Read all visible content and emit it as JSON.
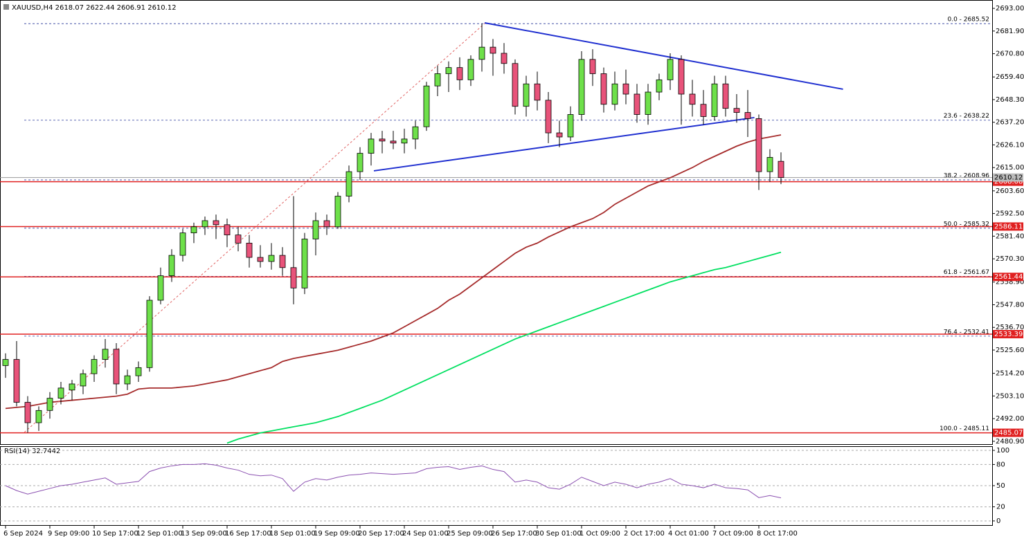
{
  "chart_data": [
    {
      "type": "candlestick",
      "title": "XAUUSD,H4 2618.07 2622.44 2606.91 2610.12",
      "ylim": [
        2479.5,
        2697.1
      ],
      "yticks": [
        {
          "value": 2693,
          "label": "2693.00"
        },
        {
          "value": 2681.9,
          "label": "2681.90"
        },
        {
          "value": 2670.8,
          "label": "2670.80"
        },
        {
          "value": 2659.4,
          "label": "2659.40"
        },
        {
          "value": 2648.3,
          "label": "2648.30"
        },
        {
          "value": 2637.2,
          "label": "2637.20"
        },
        {
          "value": 2626.1,
          "label": "2626.10"
        },
        {
          "value": 2615,
          "label": "2615.00"
        },
        {
          "value": 2603.6,
          "label": "2603.60"
        },
        {
          "value": 2592.5,
          "label": "2592.50"
        },
        {
          "value": 2581.4,
          "label": "2581.40"
        },
        {
          "value": 2570.3,
          "label": "2570.30"
        },
        {
          "value": 2558.9,
          "label": "2558.90"
        },
        {
          "value": 2547.8,
          "label": "2547.80"
        },
        {
          "value": 2536.7,
          "label": "2536.70"
        },
        {
          "value": 2525.6,
          "label": "2525.60"
        },
        {
          "value": 2514.2,
          "label": "2514.20"
        },
        {
          "value": 2503.1,
          "label": "2503.10"
        },
        {
          "value": 2492,
          "label": "2492.00"
        },
        {
          "value": 2480.9,
          "label": "2480.90"
        }
      ],
      "grid": false,
      "up_color": "#6ee04a",
      "down_color": "#e8537a",
      "open": [
        2518,
        2521,
        2500,
        2490,
        2496,
        2502,
        2506,
        2508,
        2514,
        2521,
        2526,
        2509,
        2513,
        2517,
        2550,
        2562,
        2572,
        2583,
        2586,
        2589,
        2587,
        2582,
        2578,
        2571,
        2569,
        2572,
        2566,
        2556,
        2580,
        2589,
        2586,
        2601,
        2613,
        2622,
        2629,
        2628,
        2627,
        2629,
        2635,
        2655,
        2661,
        2664,
        2658,
        2668,
        2674,
        2671,
        2666,
        2645,
        2656,
        2648,
        2632,
        2630,
        2641,
        2668,
        2661,
        2646,
        2656,
        2651,
        2641,
        2652,
        2658,
        2668,
        2651,
        2646,
        2640,
        2656,
        2644,
        2642,
        2639,
        2613,
        2618.07
      ],
      "high": [
        2524,
        2530,
        2503,
        2498,
        2505,
        2510,
        2511,
        2516,
        2523,
        2531,
        2529,
        2516,
        2520,
        2552,
        2566,
        2575,
        2585,
        2588,
        2591,
        2592,
        2590,
        2586,
        2582,
        2577,
        2578,
        2576,
        2601,
        2583,
        2593,
        2592,
        2603,
        2616,
        2625,
        2632,
        2633,
        2633,
        2634,
        2638,
        2657,
        2665,
        2667,
        2669,
        2670,
        2685.5,
        2678,
        2676,
        2668,
        2660,
        2662,
        2652,
        2638,
        2645,
        2672,
        2673,
        2664,
        2662,
        2663,
        2656,
        2656,
        2661,
        2671,
        2670,
        2658,
        2653,
        2660,
        2660,
        2651,
        2653,
        2641,
        2624,
        2622.44
      ],
      "low": [
        2512,
        2498,
        2485.1,
        2486,
        2492,
        2499,
        2501,
        2504,
        2510,
        2517,
        2504,
        2506,
        2510,
        2515,
        2548,
        2559,
        2569,
        2578,
        2582,
        2580,
        2576,
        2574,
        2566,
        2566,
        2565,
        2562,
        2548,
        2553,
        2572,
        2582,
        2585,
        2598,
        2609,
        2616,
        2622,
        2624,
        2622,
        2624,
        2633,
        2650,
        2652,
        2653,
        2655,
        2662,
        2660,
        2661,
        2641,
        2640,
        2643,
        2627,
        2625,
        2628,
        2638,
        2655,
        2642,
        2643,
        2646,
        2637,
        2636,
        2648,
        2653,
        2636,
        2640,
        2636,
        2638,
        2640,
        2637,
        2630,
        2604,
        2608,
        2606.91
      ],
      "close": [
        2521,
        2500,
        2490,
        2496,
        2502,
        2507,
        2509,
        2514,
        2521,
        2526,
        2509,
        2513,
        2517,
        2550,
        2562,
        2572,
        2583,
        2586,
        2589,
        2587,
        2582,
        2578,
        2571,
        2569,
        2572,
        2566,
        2556,
        2580,
        2589,
        2586,
        2601,
        2613,
        2622,
        2629,
        2628,
        2627,
        2629,
        2635,
        2655,
        2661,
        2664,
        2658,
        2668,
        2674,
        2671,
        2666,
        2645,
        2656,
        2648,
        2632,
        2630,
        2641,
        2668,
        2661,
        2646,
        2656,
        2651,
        2641,
        2652,
        2658,
        2668,
        2651,
        2646,
        2640,
        2656,
        2644,
        2642,
        2639,
        2613,
        2620,
        2610.12
      ],
      "lines": [
        {
          "color": "#a52a2a",
          "values": [
            2497,
            2497.5,
            2498,
            2499,
            2500,
            2500.5,
            2501,
            2501.5,
            2502,
            2502.5,
            2503,
            2504,
            2506.5,
            2507,
            2507,
            2507,
            2507.5,
            2508,
            2509,
            2510,
            2511,
            2512.5,
            2514,
            2515.5,
            2517,
            2520,
            2521.5,
            2522.5,
            2523.5,
            2524.5,
            2525.5,
            2527,
            2528.5,
            2530,
            2532,
            2534,
            2537,
            2540,
            2543,
            2546,
            2550,
            2553,
            2557,
            2561,
            2565,
            2569,
            2573,
            2576,
            2578,
            2581,
            2583.5,
            2586,
            2588,
            2590,
            2593,
            2597,
            2600,
            2603,
            2606,
            2608,
            2610,
            2612.5,
            2615,
            2618,
            2620.5,
            2623,
            2625.5,
            2627.5,
            2629,
            2630,
            2631
          ]
        },
        {
          "color": "#00e060",
          "values": [
            null,
            null,
            null,
            null,
            null,
            null,
            null,
            null,
            null,
            null,
            null,
            null,
            null,
            null,
            null,
            null,
            null,
            null,
            null,
            null,
            2480,
            2482,
            2483.5,
            2485,
            2486,
            2487,
            2488,
            2489,
            2490,
            2491.5,
            2493,
            2495,
            2497,
            2499,
            2501,
            2503.5,
            2506,
            2508.5,
            2511,
            2513.5,
            2516,
            2518.5,
            2521,
            2523.5,
            2526,
            2528.5,
            2531,
            2533,
            2535,
            2537,
            2539,
            2541,
            2543,
            2545,
            2547,
            2549,
            2551,
            2553,
            2555,
            2557,
            2559,
            2560.5,
            2562,
            2563.5,
            2565,
            2566,
            2567.5,
            2569,
            2570.5,
            2572,
            2573.5
          ]
        }
      ],
      "current_price": 2610.12,
      "hlines": [
        2608.08,
        2586.11,
        2561.44,
        2533.39,
        2485.07
      ],
      "hline_color": "#e02020",
      "fib_levels": [
        {
          "value": 2685.52,
          "label": "0.0 - 2685.52"
        },
        {
          "value": 2638.22,
          "label": "23.6 - 2638.22"
        },
        {
          "value": 2608.96,
          "label": "38.2 - 2608.96"
        },
        {
          "value": 2585.32,
          "label": "50.0 - 2585.32"
        },
        {
          "value": 2561.67,
          "label": "61.8 - 2561.67"
        },
        {
          "value": 2532.41,
          "label": "76.4 - 2532.41"
        },
        {
          "value": 2485.11,
          "label": "100.0 - 2485.11"
        }
      ],
      "trendlines": [
        {
          "x": [
            43.25,
            75.6
          ],
          "y": [
            2685.9,
            2653.4
          ],
          "color": "#1f2fd0"
        },
        {
          "x": [
            33.25,
            67.6
          ],
          "y": [
            2613.4,
            2639.5
          ],
          "color": "#1f2fd0"
        },
        {
          "x": [
            1.7,
            43.25
          ],
          "y": [
            2485.3,
            2685.6
          ],
          "color": "#e06060",
          "dashed": true
        }
      ]
    },
    {
      "type": "line",
      "title": "RSI(14) 32.7442",
      "categories": [
        "6 Sep 2024",
        null,
        null,
        null,
        "9 Sep 09:00",
        null,
        null,
        null,
        "10 Sep 17:00",
        null,
        null,
        null,
        "12 Sep 01:00",
        null,
        null,
        null,
        "13 Sep 09:00",
        null,
        null,
        null,
        "16 Sep 17:00",
        null,
        null,
        null,
        "18 Sep 01:00",
        null,
        null,
        null,
        "19 Sep 09:00",
        null,
        null,
        null,
        "20 Sep 17:00",
        null,
        null,
        null,
        "24 Sep 01:00",
        null,
        null,
        null,
        "25 Sep 09:00",
        null,
        null,
        null,
        "26 Sep 17:00",
        null,
        null,
        null,
        "30 Sep 01:00",
        null,
        null,
        null,
        "1 Oct 09:00",
        null,
        null,
        null,
        "2 Oct 17:00",
        null,
        null,
        null,
        "4 Oct 01:00",
        null,
        null,
        null,
        "7 Oct 09:00",
        null,
        null,
        null,
        "8 Oct 17:00",
        null,
        null
      ],
      "values": [
        50,
        43,
        38,
        42,
        46,
        50,
        52,
        55,
        58,
        61,
        52,
        54,
        56,
        70,
        75,
        78,
        80,
        80,
        81,
        79,
        75,
        72,
        66,
        64,
        65,
        60,
        42,
        55,
        60,
        58,
        62,
        65,
        66,
        68,
        67,
        66,
        67,
        68,
        74,
        76,
        77,
        73,
        76,
        78,
        73,
        70,
        55,
        58,
        55,
        47,
        45,
        52,
        62,
        56,
        50,
        55,
        52,
        47,
        52,
        55,
        60,
        52,
        50,
        47,
        52,
        47,
        46,
        44,
        33,
        36,
        32.7442
      ],
      "color": "#8a4fb0",
      "ylim": [
        -6.9,
        105.9
      ],
      "yticks": [
        0,
        20,
        50,
        80,
        100
      ],
      "grid": true
    }
  ]
}
